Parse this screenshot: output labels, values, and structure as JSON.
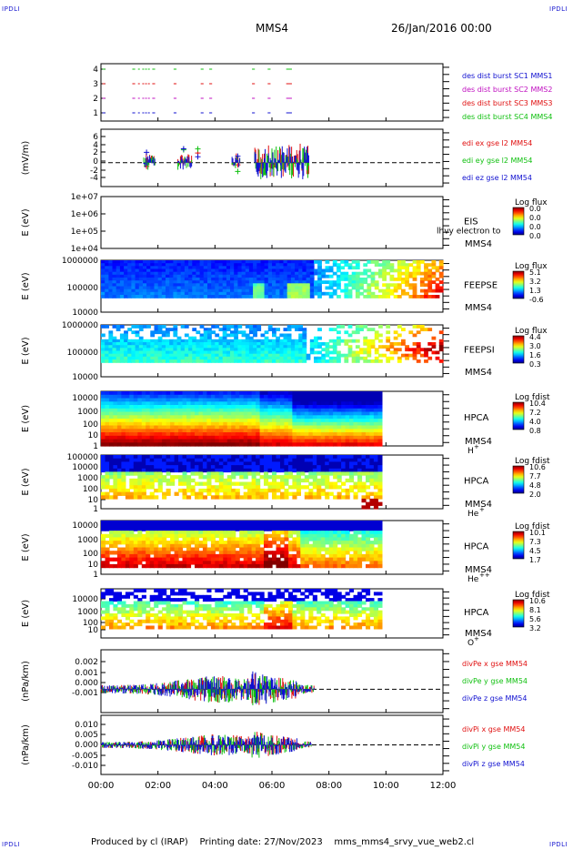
{
  "header": {
    "corner_left": "IPDLI",
    "corner_right": "IPDLI",
    "title": "MMS4",
    "date": "26/Jan/2016 00:00"
  },
  "footer": {
    "produced": "Produced by cl (IRAP)",
    "printing": "Printing date: 27/Nov/2023",
    "script": "mms_mms4_srvy_vue_web2.cl",
    "corner_left": "IPDLI",
    "corner_right": "IPDLI"
  },
  "colors": {
    "red": "#e01010",
    "green": "#10c010",
    "blue": "#1010d0",
    "magenta": "#c010c0",
    "series_label_red": "#cc0000",
    "series_label_green": "#00aa00",
    "series_label_blue": "#0000cc",
    "series_label_magenta": "#cc00cc"
  },
  "chart_data": {
    "type": "multi-panel time series",
    "x_axis": {
      "range": [
        "00:00",
        "12:00"
      ],
      "tick_labels": [
        "00:00",
        "02:00",
        "04:00",
        "06:00",
        "08:00",
        "10:00",
        "12:00"
      ]
    },
    "panels": [
      {
        "type": "scatter",
        "ylabel": "",
        "ytick_labels": [
          "4",
          "3",
          "2",
          "1"
        ],
        "series": [
          {
            "name": "des dist burst SC1 MMS1",
            "color": "#1010d0",
            "level": 1
          },
          {
            "name": "des dist burst SC2 MMS2",
            "color": "#c010c0",
            "level": 2
          },
          {
            "name": "des dist burst SC3 MMS3",
            "color": "#e01010",
            "level": 3
          },
          {
            "name": "des dist burst SC4 MMS4",
            "color": "#10c010",
            "level": 4
          }
        ],
        "burst_intervals_hours": [
          [
            0.05,
            0.15
          ],
          [
            1.1,
            1.2
          ],
          [
            1.3,
            1.35
          ],
          [
            1.45,
            1.5
          ],
          [
            1.55,
            1.6
          ],
          [
            1.65,
            1.7
          ],
          [
            1.8,
            1.9
          ],
          [
            2.55,
            2.65
          ],
          [
            3.5,
            3.6
          ],
          [
            3.8,
            3.9
          ],
          [
            5.3,
            5.4
          ],
          [
            5.85,
            5.95
          ],
          [
            6.5,
            6.7
          ]
        ]
      },
      {
        "type": "line",
        "ylabel": "(mV/m)",
        "ytick_labels": [
          "6",
          "4",
          "2",
          "0",
          "-2",
          "-4"
        ],
        "ylim": [
          -5,
          7
        ],
        "series": [
          {
            "name": "edi ex gse l2 MM54",
            "color": "#e01010"
          },
          {
            "name": "edi ey gse l2 MM54",
            "color": "#10c010"
          },
          {
            "name": "edi ez gse l2 MM54",
            "color": "#1010d0"
          }
        ],
        "reference_line": 0
      },
      {
        "type": "heatmap",
        "ylabel": "E (eV)",
        "ytick_labels": [
          "1e+07",
          "1e+06",
          "1e+05",
          "1e+04"
        ],
        "instrument": "EIS",
        "instrument_extra": "lhvy electron to",
        "spacecraft": "MMS4",
        "colorbar_title": "Log flux",
        "colorbar_ticks": [
          "0.0",
          "0.0",
          "0.0",
          "0.0"
        ],
        "empty": true
      },
      {
        "type": "heatmap",
        "ylabel": "E (eV)",
        "ytick_labels": [
          "1000000",
          "100000",
          "10000"
        ],
        "instrument": "FEEPSE",
        "spacecraft": "MMS4",
        "colorbar_title": "Log flux",
        "colorbar_ticks": [
          "5.1",
          "3.2",
          "1.3",
          "-0.6"
        ]
      },
      {
        "type": "heatmap",
        "ylabel": "E (eV)",
        "ytick_labels": [
          "1000000",
          "100000",
          "10000"
        ],
        "instrument": "FEEPSI",
        "spacecraft": "MMS4",
        "colorbar_title": "Log flux",
        "colorbar_ticks": [
          "4.4",
          "3.0",
          "1.6",
          "0.3"
        ]
      },
      {
        "type": "heatmap",
        "ylabel": "E (eV)",
        "ytick_labels": [
          "10000",
          "1000",
          "100",
          "10",
          "1"
        ],
        "instrument": "HPCA",
        "spacecraft": "MMS4",
        "species": "H",
        "species_sup": "+",
        "colorbar_title": "Log fdist",
        "colorbar_ticks": [
          "10.4",
          "7.2",
          "4.0",
          "0.8"
        ]
      },
      {
        "type": "heatmap",
        "ylabel": "E (eV)",
        "ytick_labels": [
          "100000",
          "10000",
          "1000",
          "100",
          "10",
          "1"
        ],
        "instrument": "HPCA",
        "spacecraft": "MMS4",
        "species": "He",
        "species_sup": "+",
        "colorbar_title": "Log fdist",
        "colorbar_ticks": [
          "10.6",
          "7.7",
          "4.8",
          "2.0"
        ]
      },
      {
        "type": "heatmap",
        "ylabel": "E (eV)",
        "ytick_labels": [
          "10000",
          "1000",
          "100",
          "10",
          "1"
        ],
        "instrument": "HPCA",
        "spacecraft": "MMS4",
        "species": "He",
        "species_sup": "++",
        "colorbar_title": "Log fdist",
        "colorbar_ticks": [
          "10.1",
          "7.3",
          "4.5",
          "1.7"
        ]
      },
      {
        "type": "heatmap",
        "ylabel": "E (eV)",
        "ytick_labels": [
          "10000",
          "1000",
          "100",
          "10"
        ],
        "instrument": "HPCA",
        "spacecraft": "MMS4",
        "species": "O",
        "species_sup": "+",
        "colorbar_title": "Log fdist",
        "colorbar_ticks": [
          "10.6",
          "8.1",
          "5.6",
          "3.2"
        ]
      },
      {
        "type": "line",
        "ylabel": "(nPa/km)",
        "ytick_labels": [
          "0.002",
          "0.001",
          "0.000",
          "-0.001"
        ],
        "ylim": [
          -0.0016,
          0.0027
        ],
        "series": [
          {
            "name": "divPe x gse MM54",
            "color": "#e01010"
          },
          {
            "name": "divPe y gse MM54",
            "color": "#10c010"
          },
          {
            "name": "divPe z gse MM54",
            "color": "#1010d0"
          }
        ],
        "reference_line": 0
      },
      {
        "type": "line",
        "ylabel": "(nPa/km)",
        "ytick_labels": [
          "0.010",
          "0.005",
          "0.000",
          "-0.005",
          "-0.010"
        ],
        "ylim": [
          -0.013,
          0.013
        ],
        "series": [
          {
            "name": "divPi x gse MM54",
            "color": "#e01010"
          },
          {
            "name": "divPi y gse MM54",
            "color": "#10c010"
          },
          {
            "name": "divPi z gse MM54",
            "color": "#1010d0"
          }
        ],
        "reference_line": 0
      }
    ]
  }
}
